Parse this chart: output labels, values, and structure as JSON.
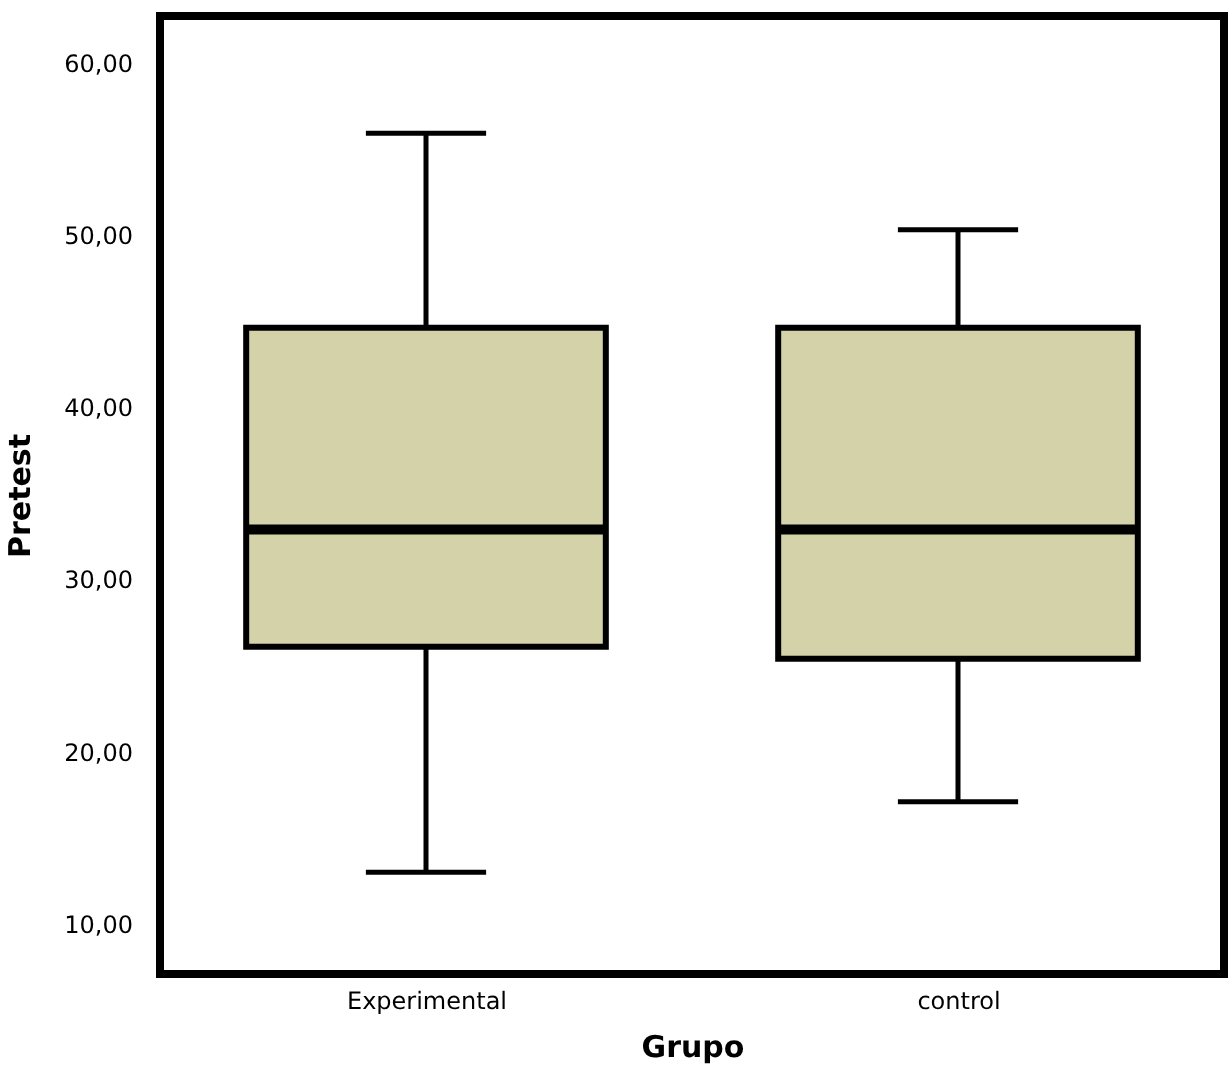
{
  "chart_data": {
    "type": "box",
    "xlabel": "Grupo",
    "ylabel": "Pretest",
    "categories": [
      "Experimental",
      "control"
    ],
    "color": "#d4d2a8",
    "boxes": [
      {
        "low": 13.0,
        "q1": 26.1,
        "median": 32.9,
        "q3": 44.6,
        "high": 55.9
      },
      {
        "low": 17.1,
        "q1": 25.4,
        "median": 32.9,
        "q3": 44.6,
        "high": 50.3
      }
    ],
    "ylim": [
      7.1,
      62.7
    ],
    "yticks": [
      {
        "value": 10,
        "label": "10,00"
      },
      {
        "value": 20,
        "label": "20,00"
      },
      {
        "value": 30,
        "label": "30,00"
      },
      {
        "value": 40,
        "label": "40,00"
      },
      {
        "value": 50,
        "label": "50,00"
      },
      {
        "value": 60,
        "label": "60,00"
      }
    ],
    "grid": false
  }
}
